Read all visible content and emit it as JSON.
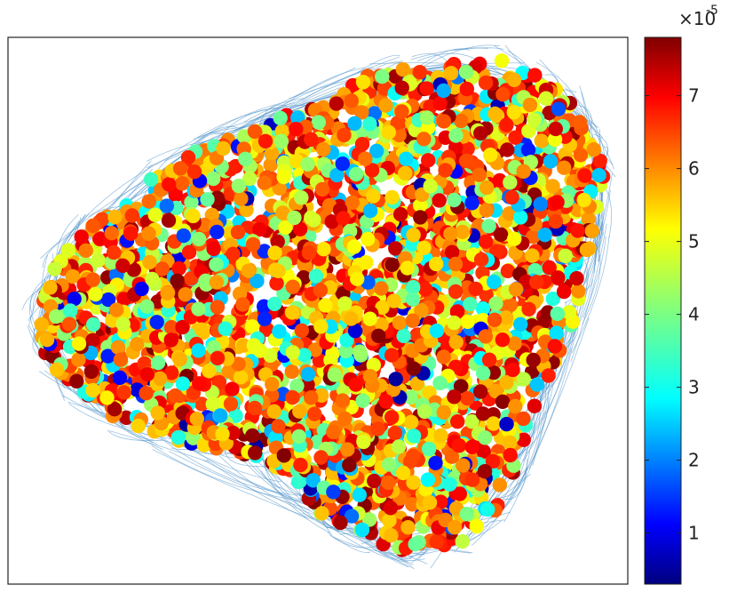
{
  "chart_data": {
    "type": "scatter",
    "title": "",
    "xlabel": "",
    "ylabel": "",
    "axes_ticks_visible": false,
    "grid": false,
    "legend": "none",
    "edges": {
      "drawn": true,
      "color": "#4a8fc8"
    },
    "colorbar": {
      "colormap": "jet",
      "position": "right",
      "range": [
        3e-06,
        7.8e-05
      ],
      "multiplier": "×10",
      "exponent": "-5",
      "ticks": [
        {
          "value": 1,
          "label": "1"
        },
        {
          "value": 2,
          "label": "2"
        },
        {
          "value": 3,
          "label": "3"
        },
        {
          "value": 4,
          "label": "4"
        },
        {
          "value": 5,
          "label": "5"
        },
        {
          "value": 6,
          "label": "6"
        },
        {
          "value": 7,
          "label": "7"
        }
      ]
    },
    "point_count_estimate": 3000,
    "value_distribution_note": "mostly 5e-5 to 7e-5, sparse low values near 1e-5"
  }
}
